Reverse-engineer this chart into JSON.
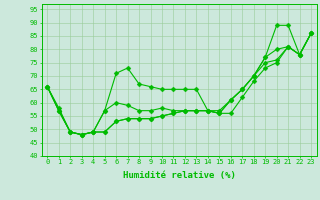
{
  "xlabel": "Humidité relative (%)",
  "xlim": [
    -0.5,
    23.5
  ],
  "ylim": [
    40,
    97
  ],
  "yticks": [
    40,
    45,
    50,
    55,
    60,
    65,
    70,
    75,
    80,
    85,
    90,
    95
  ],
  "xticks": [
    0,
    1,
    2,
    3,
    4,
    5,
    6,
    7,
    8,
    9,
    10,
    11,
    12,
    13,
    14,
    15,
    16,
    17,
    18,
    19,
    20,
    21,
    22,
    23
  ],
  "background_color": "#cce8dc",
  "line_color": "#00bb00",
  "grid_color": "#99cc99",
  "series": [
    [
      66,
      58,
      49,
      48,
      49,
      57,
      71,
      73,
      67,
      66,
      65,
      65,
      65,
      65,
      57,
      57,
      61,
      65,
      70,
      77,
      89,
      89,
      78,
      86
    ],
    [
      66,
      57,
      49,
      48,
      49,
      57,
      60,
      59,
      57,
      57,
      58,
      57,
      57,
      57,
      57,
      56,
      61,
      65,
      70,
      77,
      80,
      81,
      78,
      86
    ],
    [
      66,
      57,
      49,
      48,
      49,
      49,
      53,
      54,
      54,
      54,
      55,
      56,
      57,
      57,
      57,
      56,
      61,
      65,
      70,
      75,
      76,
      81,
      78,
      86
    ],
    [
      66,
      57,
      49,
      48,
      49,
      49,
      53,
      54,
      54,
      54,
      55,
      56,
      57,
      57,
      57,
      56,
      56,
      62,
      68,
      73,
      75,
      81,
      78,
      86
    ]
  ],
  "xlabel_fontsize": 6.5,
  "tick_fontsize": 5.0,
  "linewidth": 0.8,
  "markersize": 2.5
}
